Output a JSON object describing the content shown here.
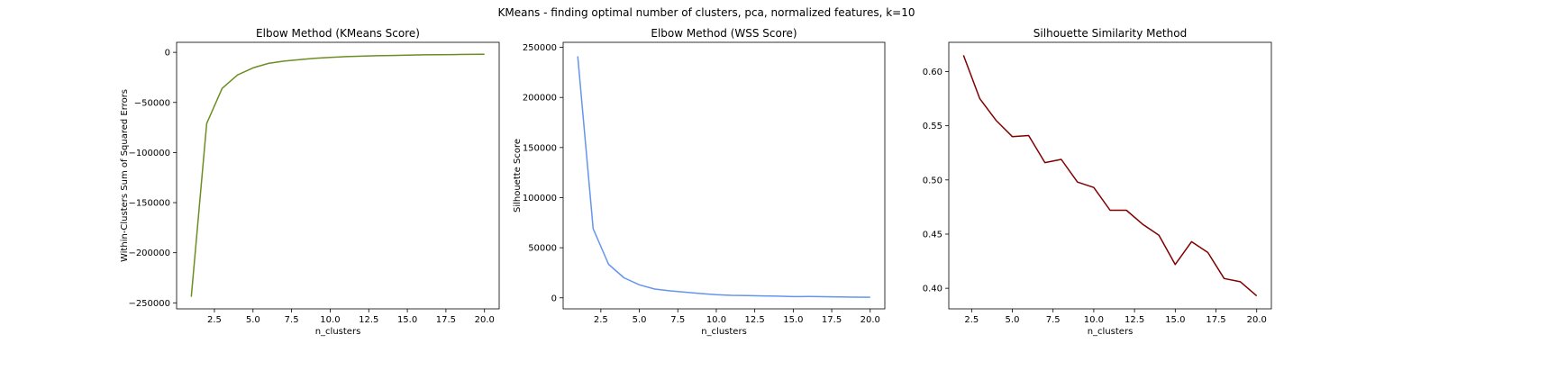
{
  "figure": {
    "suptitle": "KMeans - finding optimal number of clusters, pca, normalized features, k=10"
  },
  "chart_data": [
    {
      "type": "line",
      "title": "Elbow Method (KMeans Score)",
      "xlabel": "n_clusters",
      "ylabel": "Within-Clusters Sum of Squared Errors",
      "color": "#6b8e23",
      "xlim": [
        0.05,
        20.95
      ],
      "ylim": [
        -256000,
        10000
      ],
      "xticks": [
        2.5,
        5.0,
        7.5,
        10.0,
        12.5,
        15.0,
        17.5,
        20.0
      ],
      "xtick_labels": [
        "2.5",
        "5.0",
        "7.5",
        "10.0",
        "12.5",
        "15.0",
        "17.5",
        "20.0"
      ],
      "yticks": [
        0,
        -50000,
        -100000,
        -150000,
        -200000,
        -250000
      ],
      "ytick_labels": [
        "0",
        "−50000",
        "−100000",
        "−150000",
        "−200000",
        "−250000"
      ],
      "grid": false,
      "series": [
        {
          "x": [
            1,
            2,
            3,
            4,
            5,
            6,
            7,
            8,
            9,
            10,
            11,
            12,
            13,
            14,
            15,
            16,
            17,
            18,
            19,
            20
          ],
          "values": [
            -244000,
            -71000,
            -36000,
            -22500,
            -15500,
            -11000,
            -8800,
            -7300,
            -6000,
            -5000,
            -4300,
            -3800,
            -3400,
            -3100,
            -2800,
            -2500,
            -2300,
            -2200,
            -2000,
            -1900
          ]
        }
      ]
    },
    {
      "type": "line",
      "title": "Elbow Method (WSS Score)",
      "xlabel": "n_clusters",
      "ylabel": "Silhouette Score",
      "color": "#6495ed",
      "xlim": [
        0.05,
        20.95
      ],
      "ylim": [
        -11000,
        255000
      ],
      "xticks": [
        2.5,
        5.0,
        7.5,
        10.0,
        12.5,
        15.0,
        17.5,
        20.0
      ],
      "xtick_labels": [
        "2.5",
        "5.0",
        "7.5",
        "10.0",
        "12.5",
        "15.0",
        "17.5",
        "20.0"
      ],
      "yticks": [
        0,
        50000,
        100000,
        150000,
        200000,
        250000
      ],
      "ytick_labels": [
        "0",
        "50000",
        "100000",
        "150000",
        "200000",
        "250000"
      ],
      "grid": false,
      "series": [
        {
          "x": [
            1,
            2,
            3,
            4,
            5,
            6,
            7,
            8,
            9,
            10,
            11,
            12,
            13,
            14,
            15,
            16,
            17,
            18,
            19,
            20
          ],
          "values": [
            241000,
            69000,
            33500,
            20000,
            13000,
            8800,
            7000,
            5600,
            4300,
            3200,
            2500,
            2200,
            1900,
            1700,
            1200,
            1300,
            1100,
            900,
            700,
            600
          ]
        }
      ]
    },
    {
      "type": "line",
      "title": "Silhouette Similarity Method",
      "xlabel": "n_clusters",
      "ylabel": "",
      "color": "#800000",
      "xlim": [
        1.1,
        20.9
      ],
      "ylim": [
        0.381,
        0.627
      ],
      "xticks": [
        2.5,
        5.0,
        7.5,
        10.0,
        12.5,
        15.0,
        17.5,
        20.0
      ],
      "xtick_labels": [
        "2.5",
        "5.0",
        "7.5",
        "10.0",
        "12.5",
        "15.0",
        "17.5",
        "20.0"
      ],
      "yticks": [
        0.4,
        0.45,
        0.5,
        0.55,
        0.6
      ],
      "ytick_labels": [
        "0.40",
        "0.45",
        "0.50",
        "0.55",
        "0.60"
      ],
      "grid": false,
      "series": [
        {
          "x": [
            2,
            3,
            4,
            5,
            6,
            7,
            8,
            9,
            10,
            11,
            12,
            13,
            14,
            15,
            16,
            17,
            18,
            19,
            20
          ],
          "values": [
            0.615,
            0.575,
            0.555,
            0.54,
            0.541,
            0.516,
            0.519,
            0.498,
            0.493,
            0.472,
            0.472,
            0.459,
            0.449,
            0.422,
            0.443,
            0.433,
            0.409,
            0.406,
            0.393
          ]
        }
      ]
    }
  ]
}
